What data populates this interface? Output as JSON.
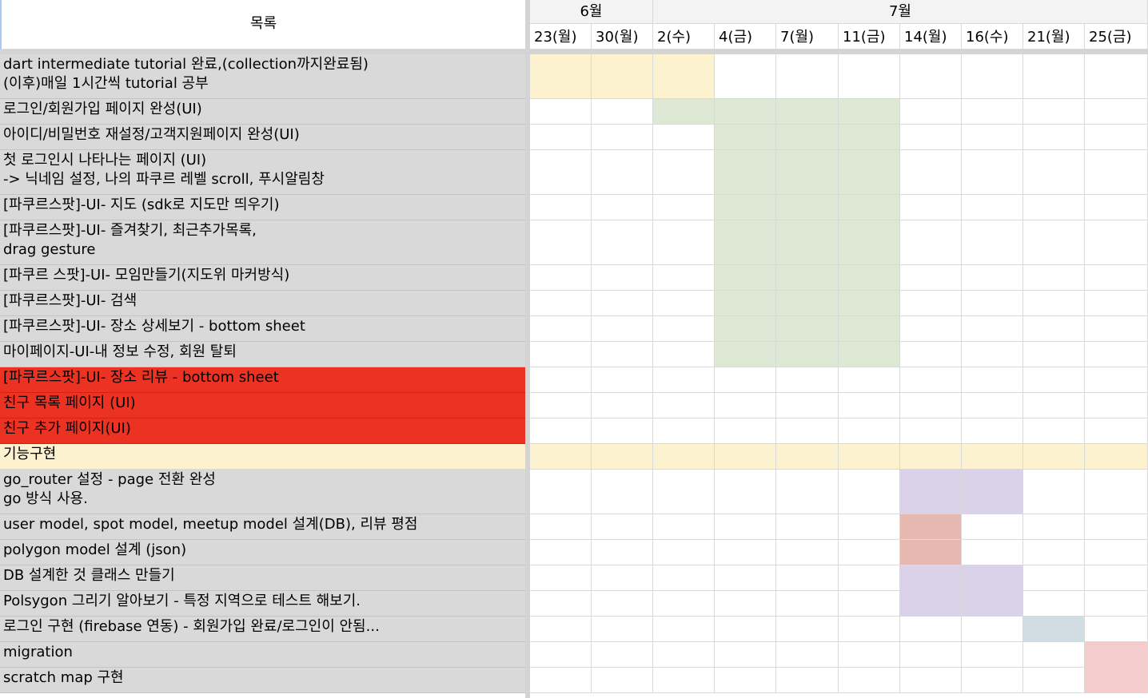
{
  "sheet": {
    "list_header": "목록",
    "months": [
      {
        "label": "6월",
        "start": 0,
        "span": 2
      },
      {
        "label": "7월",
        "start": 2,
        "span": 8
      }
    ],
    "dates": [
      "23(월)",
      "30(월)",
      "2(수)",
      "4(금)",
      "7(월)",
      "11(금)",
      "14(월)",
      "16(수)",
      "21(월)",
      "25(금)"
    ],
    "colors": {
      "yellow": "#fdf2d0",
      "green": "#dde8d5",
      "lavender": "#d9d2e9",
      "salmon": "#e6b8af",
      "bluegray": "#d0dde2",
      "pink": "#f4cccc",
      "red_row": "#ec3323",
      "task_gray": "#d9d9d9"
    },
    "tasks": [
      {
        "label": "dart intermediate tutorial 완료,(collection까지완료됨)\n(이후)매일 1시간씩 tutorial 공부",
        "lines": 2,
        "style": "normal",
        "bar": {
          "from": 0,
          "to": 2,
          "color": "yellow"
        }
      },
      {
        "label": "로그인/회원가입 페이지 완성(UI)",
        "lines": 1,
        "style": "normal",
        "bar": {
          "from": 2,
          "to": 5,
          "color": "green"
        }
      },
      {
        "label": "아이디/비밀번호 재설정/고객지원페이지 완성(UI)",
        "lines": 1,
        "style": "normal",
        "bar": {
          "from": 3,
          "to": 5,
          "color": "green"
        }
      },
      {
        "label": "첫 로그인시 나타나는 페이지 (UI)\n-> 닉네임 설정, 나의 파쿠르 레벨 scroll, 푸시알림창",
        "lines": 2,
        "style": "normal",
        "bar": {
          "from": 3,
          "to": 5,
          "color": "green"
        }
      },
      {
        "label": "[파쿠르스팟]-UI- 지도 (sdk로 지도만 띄우기)",
        "lines": 1,
        "style": "normal",
        "bar": {
          "from": 3,
          "to": 5,
          "color": "green"
        }
      },
      {
        "label": "[파쿠르스팟]-UI- 즐겨찾기, 최근추가목록,\ndrag gesture",
        "lines": 2,
        "style": "normal",
        "bar": {
          "from": 3,
          "to": 5,
          "color": "green"
        }
      },
      {
        "label": "[파쿠르 스팟]-UI- 모임만들기(지도위 마커방식)",
        "lines": 1,
        "style": "normal",
        "bar": {
          "from": 3,
          "to": 5,
          "color": "green"
        }
      },
      {
        "label": "[파쿠르스팟]-UI- 검색",
        "lines": 1,
        "style": "normal",
        "bar": {
          "from": 3,
          "to": 5,
          "color": "green"
        }
      },
      {
        "label": "[파쿠르스팟]-UI- 장소 상세보기 - bottom sheet",
        "lines": 1,
        "style": "normal",
        "bar": {
          "from": 3,
          "to": 5,
          "color": "green"
        }
      },
      {
        "label": "마이페이지-UI-내 정보 수정, 회원 탈퇴",
        "lines": 1,
        "style": "normal",
        "bar": {
          "from": 3,
          "to": 5,
          "color": "green"
        }
      },
      {
        "label": "[파쿠르스팟]-UI- 장소 리뷰 - bottom sheet",
        "lines": 1,
        "style": "red",
        "bar": null
      },
      {
        "label": "친구 목록 페이지 (UI)",
        "lines": 1,
        "style": "red",
        "bar": null
      },
      {
        "label": "친구 추가 페이지(UI)",
        "lines": 1,
        "style": "red",
        "bar": null
      },
      {
        "label": "기능구현",
        "lines": 1,
        "style": "section",
        "bar": {
          "from": 0,
          "to": 9,
          "color": "yellow"
        }
      },
      {
        "label": "go_router 설정 - page 전환 완성\ngo 방식 사용.",
        "lines": 2,
        "style": "normal",
        "bar": {
          "from": 6,
          "to": 7,
          "color": "lavender"
        }
      },
      {
        "label": "user model, spot model, meetup model 설계(DB), 리뷰 평점",
        "lines": 1,
        "style": "normal",
        "bar": {
          "from": 6,
          "to": 6,
          "color": "salmon"
        }
      },
      {
        "label": "polygon model 설계 (json)",
        "lines": 1,
        "style": "normal",
        "bar": {
          "from": 6,
          "to": 6,
          "color": "salmon"
        }
      },
      {
        "label": "DB 설계한 것 클래스 만들기",
        "lines": 1,
        "style": "normal",
        "bar": {
          "from": 6,
          "to": 7,
          "color": "lavender"
        }
      },
      {
        "label": "Polsygon 그리기  알아보기 - 특정 지역으로 테스트 해보기.",
        "lines": 1,
        "style": "normal",
        "bar": {
          "from": 6,
          "to": 7,
          "color": "lavender"
        }
      },
      {
        "label": "로그인 구현 (firebase 연동) - 회원가입 완료/로그인이 안됨...",
        "lines": 1,
        "style": "normal",
        "bar": {
          "from": 8,
          "to": 8,
          "color": "bluegray"
        }
      },
      {
        "label": "migration",
        "lines": 1,
        "style": "normal",
        "bar": {
          "from": 9,
          "to": 9,
          "color": "pink"
        }
      },
      {
        "label": "scratch map 구현",
        "lines": 1,
        "style": "normal",
        "bar": {
          "from": 9,
          "to": 9,
          "color": "pink"
        }
      }
    ]
  }
}
